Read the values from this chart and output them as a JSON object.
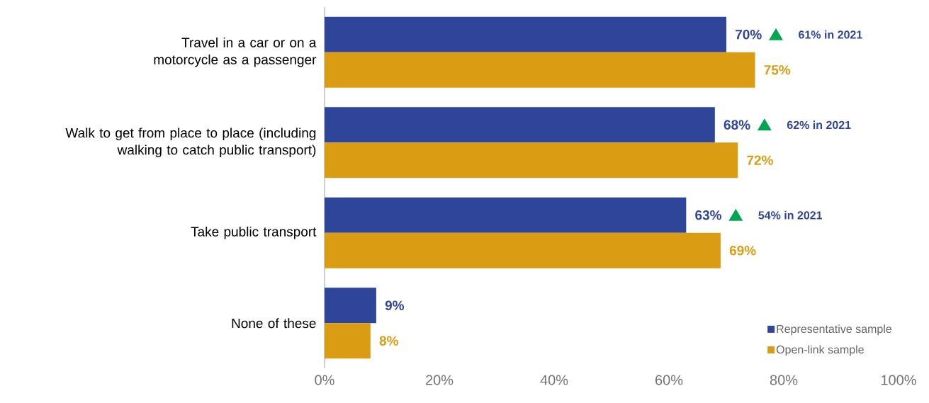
{
  "chart_data": {
    "type": "bar",
    "orientation": "horizontal",
    "categories": [
      "Travel in a car or on a motorcycle as a passenger",
      "Walk to get from place to place (including walking to catch public transport)",
      "Take public transport",
      "None of these"
    ],
    "series": [
      {
        "name": "Representative sample",
        "color": "#2e4599",
        "values": [
          70,
          68,
          63,
          9
        ],
        "value_labels": [
          "70%",
          "68%",
          "63%",
          "9%"
        ]
      },
      {
        "name": "Open-link sample",
        "color": "#da9c13",
        "values": [
          75,
          72,
          69,
          8
        ],
        "value_labels": [
          "75%",
          "72%",
          "69%",
          "8%"
        ]
      }
    ],
    "xlim": [
      0,
      100
    ],
    "xticks": [
      {
        "value": 0,
        "label": "0%"
      },
      {
        "value": 20,
        "label": "20%"
      },
      {
        "value": 40,
        "label": "40%"
      },
      {
        "value": 60,
        "label": "60%"
      },
      {
        "value": 80,
        "label": "80%"
      },
      {
        "value": 100,
        "label": "100%"
      }
    ],
    "legend": "bottom right",
    "annotations": [
      "61% in 2021",
      "62% in 2021",
      "54% in 2021"
    ]
  }
}
